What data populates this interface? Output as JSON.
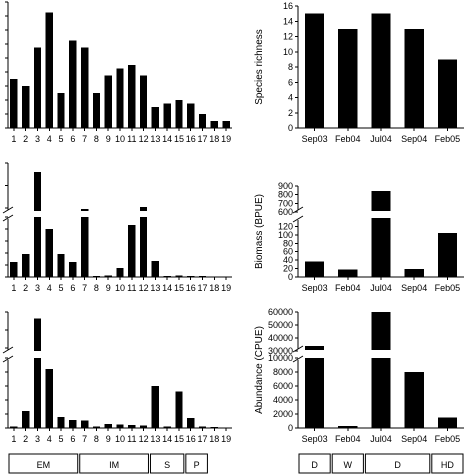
{
  "chart_data": [
    {
      "panel": "left-top",
      "type": "bar",
      "categories": [
        "1",
        "2",
        "3",
        "4",
        "5",
        "6",
        "7",
        "8",
        "9",
        "10",
        "11",
        "12",
        "13",
        "14",
        "15",
        "16",
        "17",
        "18",
        "19"
      ],
      "values": [
        7,
        6,
        11.5,
        16.5,
        5,
        12.5,
        11.5,
        5,
        7.5,
        8.5,
        9,
        7.5,
        3,
        3.5,
        4,
        3.5,
        2,
        1,
        1
      ],
      "ylim": [
        0,
        18
      ],
      "xlabel": "",
      "ylabel": "",
      "grouping": []
    },
    {
      "panel": "left-middle",
      "type": "bar",
      "broken_axis": true,
      "categories": [
        "1",
        "2",
        "3",
        "4",
        "5",
        "6",
        "7",
        "8",
        "9",
        "10",
        "11",
        "12",
        "13",
        "14",
        "15",
        "16",
        "17",
        "18",
        "19"
      ],
      "values": [
        38,
        58,
        440,
        120,
        58,
        38,
        200,
        2,
        4,
        22,
        130,
        170,
        40,
        3,
        4,
        2,
        2,
        1,
        1
      ],
      "ylim": [
        0,
        500
      ],
      "xlabel": "",
      "ylabel": "",
      "grouping": []
    },
    {
      "panel": "left-bottom",
      "type": "bar",
      "broken_axis": true,
      "categories": [
        "1",
        "2",
        "3",
        "4",
        "5",
        "6",
        "7",
        "8",
        "9",
        "10",
        "11",
        "12",
        "13",
        "14",
        "15",
        "16",
        "17",
        "18",
        "19"
      ],
      "values": [
        120,
        1200,
        55000,
        4200,
        800,
        580,
        520,
        100,
        300,
        260,
        200,
        180,
        3000,
        120,
        2600,
        700,
        100,
        60,
        30
      ],
      "ylim": [
        0,
        60000
      ],
      "xlabel": "",
      "ylabel": "",
      "grouping": [
        {
          "label": "EM",
          "from": 1,
          "to": 6
        },
        {
          "label": "IM",
          "from": 7,
          "to": 12
        },
        {
          "label": "S",
          "from": 13,
          "to": 15
        },
        {
          "label": "P",
          "from": 16,
          "to": 17
        }
      ]
    },
    {
      "panel": "right-top",
      "type": "bar",
      "categories": [
        "Sep03",
        "Feb04",
        "Jul04",
        "Sep04",
        "Feb05"
      ],
      "values": [
        15,
        13,
        15,
        13,
        9
      ],
      "ylim": [
        0,
        16
      ],
      "yticks": [
        "0",
        "2",
        "4",
        "6",
        "8",
        "10",
        "12",
        "14",
        "16"
      ],
      "xlabel": "",
      "ylabel": "Species richness",
      "grouping": []
    },
    {
      "panel": "right-middle",
      "type": "bar",
      "broken_axis": true,
      "categories": [
        "Sep03",
        "Feb04",
        "Jul04",
        "Sep04",
        "Feb05"
      ],
      "values": [
        37,
        18,
        840,
        19,
        105
      ],
      "ylim": [
        0,
        900
      ],
      "yticks_low": [
        "0",
        "20",
        "40",
        "60",
        "80",
        "100",
        "120"
      ],
      "yticks_high": [
        "600",
        "700",
        "800",
        "900"
      ],
      "xlabel": "",
      "ylabel": "Biomass (BPUE)",
      "grouping": []
    },
    {
      "panel": "right-bottom",
      "type": "bar",
      "broken_axis": true,
      "categories": [
        "Sep03",
        "Feb04",
        "Jul04",
        "Sep04",
        "Feb05"
      ],
      "values": [
        22000,
        300,
        60000,
        8000,
        1500
      ],
      "ylim": [
        0,
        60000
      ],
      "yticks_low": [
        "0",
        "2000",
        "4000",
        "6000",
        "8000",
        "10000"
      ],
      "yticks_high": [
        "30000",
        "40000",
        "50000",
        "60000"
      ],
      "xlabel": "",
      "ylabel": "Abundance (CPUE)",
      "grouping": [
        {
          "label": "D",
          "from": 1,
          "to": 1
        },
        {
          "label": "W",
          "from": 2,
          "to": 2
        },
        {
          "label": "D",
          "from": 3,
          "to": 4
        },
        {
          "label": "HD",
          "from": 5,
          "to": 5
        }
      ]
    }
  ]
}
